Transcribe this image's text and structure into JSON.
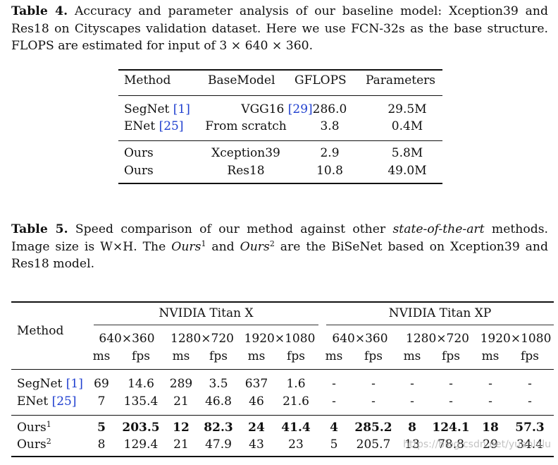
{
  "table4": {
    "caption_label": "Table 4.",
    "caption_text": " Accuracy and parameter analysis of our baseline model: Xception39 and Res18 on Cityscapes validation dataset. Here we use FCN-32s as the base structure. FLOPS are estimated for input of 3 × 640 × 360.",
    "headers": [
      "Method",
      "BaseModel",
      "GFLOPS",
      "Parameters"
    ],
    "rows": [
      {
        "method": "SegNet",
        "cite": "[1]",
        "base": "VGG16",
        "base_cite": "[29]",
        "gflops": "286.0",
        "params": "29.5M"
      },
      {
        "method": "ENet",
        "cite": "[25]",
        "base": "From scratch",
        "base_cite": "",
        "gflops": "3.8",
        "params": "0.4M"
      },
      {
        "method": "Ours",
        "cite": "",
        "base": "Xception39",
        "base_cite": "",
        "gflops": "2.9",
        "params": "5.8M"
      },
      {
        "method": "Ours",
        "cite": "",
        "base": "Res18",
        "base_cite": "",
        "gflops": "10.8",
        "params": "49.0M"
      }
    ]
  },
  "table5": {
    "caption_label": "Table 5.",
    "caption_pre": " Speed comparison of our method against other ",
    "caption_em": "state-of-the-art",
    "caption_mid": " methods. Image size is W×H. The ",
    "caption_ours": "Ours",
    "sup1": "1",
    "caption_and": " and ",
    "sup2": "2",
    "caption_post": " are the BiSeNet based on Xception39 and Res18 model.",
    "method_header": "Method",
    "gpu_headers": [
      "NVIDIA Titan X",
      "NVIDIA Titan XP"
    ],
    "res_headers": [
      "640×360",
      "1280×720",
      "1920×1080",
      "640×360",
      "1280×720",
      "1920×1080"
    ],
    "unit_headers": [
      "ms",
      "fps"
    ],
    "rows": [
      {
        "method": "SegNet",
        "cite": "[1]",
        "sup": "",
        "bold": false,
        "values": [
          "69",
          "14.6",
          "289",
          "3.5",
          "637",
          "1.6",
          "-",
          "-",
          "-",
          "-",
          "-",
          "-"
        ]
      },
      {
        "method": "ENet",
        "cite": "[25]",
        "sup": "",
        "bold": false,
        "values": [
          "7",
          "135.4",
          "21",
          "46.8",
          "46",
          "21.6",
          "-",
          "-",
          "-",
          "-",
          "-",
          "-"
        ]
      },
      {
        "method": "Ours",
        "cite": "",
        "sup": "1",
        "bold": true,
        "values": [
          "5",
          "203.5",
          "12",
          "82.3",
          "24",
          "41.4",
          "4",
          "285.2",
          "8",
          "124.1",
          "18",
          "57.3"
        ]
      },
      {
        "method": "Ours",
        "cite": "",
        "sup": "2",
        "bold": false,
        "values": [
          "8",
          "129.4",
          "21",
          "47.9",
          "43",
          "23",
          "5",
          "205.7",
          "13",
          "78.8",
          "29",
          "34.4"
        ]
      }
    ]
  },
  "watermark": "https://blog.csdn.net/yuanlulu"
}
